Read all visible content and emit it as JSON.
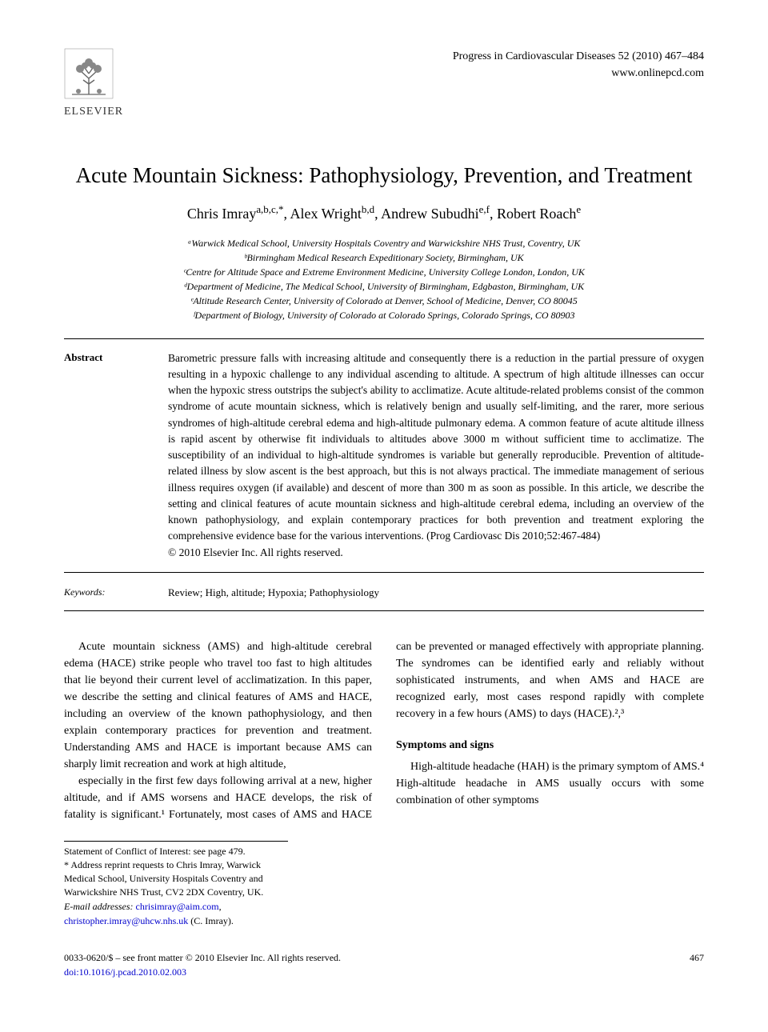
{
  "journal": {
    "citation": "Progress in Cardiovascular Diseases 52 (2010) 467–484",
    "website": "www.onlinepcd.com"
  },
  "publisher": {
    "name": "ELSEVIER"
  },
  "article": {
    "title": "Acute Mountain Sickness: Pathophysiology, Prevention, and Treatment",
    "authors_html": "Chris Imray<sup>a,b,c,*</sup>, Alex Wright<sup>b,d</sup>, Andrew Subudhi<sup>e,f</sup>, Robert Roach<sup>e</sup>",
    "affiliations": [
      "ᵃWarwick Medical School, University Hospitals Coventry and Warwickshire NHS Trust, Coventry, UK",
      "ᵇBirmingham Medical Research Expeditionary Society, Birmingham, UK",
      "ᶜCentre for Altitude Space and Extreme Environment Medicine, University College London, London, UK",
      "ᵈDepartment of Medicine, The Medical School, University of Birmingham, Edgbaston, Birmingham, UK",
      "ᵉAltitude Research Center, University of Colorado at Denver, School of Medicine, Denver, CO 80045",
      "ᶠDepartment of Biology, University of Colorado at Colorado Springs, Colorado Springs, CO 80903"
    ]
  },
  "abstract": {
    "label": "Abstract",
    "text": "Barometric pressure falls with increasing altitude and consequently there is a reduction in the partial pressure of oxygen resulting in a hypoxic challenge to any individual ascending to altitude. A spectrum of high altitude illnesses can occur when the hypoxic stress outstrips the subject's ability to acclimatize. Acute altitude-related problems consist of the common syndrome of acute mountain sickness, which is relatively benign and usually self-limiting, and the rarer, more serious syndromes of high-altitude cerebral edema and high-altitude pulmonary edema. A common feature of acute altitude illness is rapid ascent by otherwise fit individuals to altitudes above 3000 m without sufficient time to acclimatize. The susceptibility of an individual to high-altitude syndromes is variable but generally reproducible. Prevention of altitude-related illness by slow ascent is the best approach, but this is not always practical. The immediate management of serious illness requires oxygen (if available) and descent of more than 300 m as soon as possible. In this article, we describe the setting and clinical features of acute mountain sickness and high-altitude cerebral edema, including an overview of the known pathophysiology, and explain contemporary practices for both prevention and treatment exploring the comprehensive evidence base for the various interventions. (Prog Cardiovasc Dis 2010;52:467-484)",
    "copyright": "© 2010 Elsevier Inc. All rights reserved."
  },
  "keywords": {
    "label": "Keywords:",
    "text": "Review; High, altitude; Hypoxia; Pathophysiology"
  },
  "body": {
    "para1": "Acute mountain sickness (AMS) and high-altitude cerebral edema (HACE) strike people who travel too fast to high altitudes that lie beyond their current level of acclimatization. In this paper, we describe the setting and clinical features of AMS and HACE, including an overview of the known pathophysiology, and then explain contemporary practices for prevention and treatment. Understanding AMS and HACE is important because AMS can sharply limit recreation and work at high altitude,",
    "para2": "especially in the first few days following arrival at a new, higher altitude, and if AMS worsens and HACE develops, the risk of fatality is significant.¹ Fortunately, most cases of AMS and HACE can be prevented or managed effectively with appropriate planning. The syndromes can be identified early and reliably without sophisticated instruments, and when AMS and HACE are recognized early, most cases respond rapidly with complete recovery in a few hours (AMS) to days (HACE).²,³",
    "section_heading": "Symptoms and signs",
    "para3": "High-altitude headache (HAH) is the primary symptom of AMS.⁴ High-altitude headache in AMS usually occurs with some combination of other symptoms"
  },
  "footnotes": {
    "conflict": "Statement of Conflict of Interest: see page 479.",
    "reprint": "* Address reprint requests to Chris Imray, Warwick Medical School, University Hospitals Coventry and Warwickshire NHS Trust, CV2 2DX Coventry, UK.",
    "email_label": "E-mail addresses:",
    "email1": "chrisimray@aim.com",
    "email2": "christopher.imray@uhcw.nhs.uk",
    "email_attr": "(C. Imray)."
  },
  "bottom": {
    "left1": "0033-0620/$ – see front matter © 2010 Elsevier Inc. All rights reserved.",
    "left2": "doi:10.1016/j.pcad.2010.02.003",
    "page": "467"
  },
  "colors": {
    "text": "#000000",
    "link": "#0000cc",
    "rule": "#000000",
    "background": "#ffffff",
    "logo": "#f7941e"
  },
  "typography": {
    "title_fontsize": 27,
    "author_fontsize": 18,
    "affil_fontsize": 12,
    "body_fontsize": 14,
    "abstract_fontsize": 13.5,
    "font_family": "Times New Roman"
  }
}
